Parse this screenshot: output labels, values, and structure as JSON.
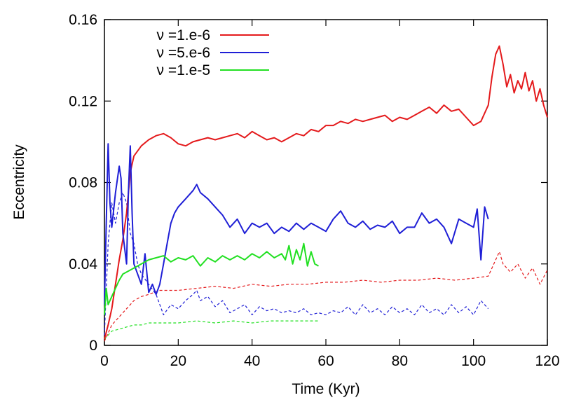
{
  "chart_data": {
    "type": "line",
    "xlabel": "Time (Kyr)",
    "ylabel": "Eccentricity",
    "xlim": [
      0,
      120
    ],
    "ylim": [
      0,
      0.16
    ],
    "xticks": [
      0,
      20,
      40,
      60,
      80,
      100,
      120
    ],
    "yticks": [
      0,
      0.04,
      0.08,
      0.12,
      0.16
    ],
    "xtick_labels": [
      "0",
      "20",
      "40",
      "60",
      "80",
      "100",
      "120"
    ],
    "ytick_labels": [
      "0",
      "0.04",
      "0.08",
      "0.12",
      "0.16"
    ],
    "legend_position": "top-left",
    "series": [
      {
        "name": "ν =1.e-6",
        "color": "#e41a1c",
        "style": "solid",
        "x": [
          0,
          1,
          2,
          3,
          4,
          5,
          6,
          7,
          8,
          10,
          12,
          14,
          16,
          18,
          20,
          22,
          24,
          26,
          28,
          30,
          32,
          34,
          36,
          38,
          40,
          42,
          44,
          46,
          48,
          50,
          52,
          54,
          56,
          58,
          60,
          62,
          64,
          66,
          68,
          70,
          72,
          74,
          76,
          78,
          80,
          82,
          84,
          86,
          88,
          90,
          92,
          94,
          96,
          98,
          100,
          102,
          104,
          105,
          106,
          107,
          108,
          109,
          110,
          111,
          112,
          113,
          114,
          115,
          116,
          117,
          118,
          119,
          120
        ],
        "y": [
          0.003,
          0.01,
          0.018,
          0.03,
          0.042,
          0.052,
          0.065,
          0.085,
          0.093,
          0.098,
          0.101,
          0.103,
          0.104,
          0.102,
          0.099,
          0.098,
          0.1,
          0.101,
          0.102,
          0.101,
          0.102,
          0.103,
          0.104,
          0.102,
          0.105,
          0.103,
          0.101,
          0.102,
          0.1,
          0.102,
          0.104,
          0.103,
          0.106,
          0.105,
          0.108,
          0.108,
          0.11,
          0.109,
          0.111,
          0.11,
          0.111,
          0.112,
          0.113,
          0.11,
          0.112,
          0.111,
          0.113,
          0.115,
          0.117,
          0.114,
          0.118,
          0.115,
          0.116,
          0.112,
          0.108,
          0.11,
          0.118,
          0.132,
          0.143,
          0.147,
          0.138,
          0.127,
          0.133,
          0.124,
          0.13,
          0.126,
          0.134,
          0.125,
          0.13,
          0.12,
          0.126,
          0.118,
          0.112
        ]
      },
      {
        "name": "ν =5.e-6",
        "color": "#1f1fd6",
        "style": "solid",
        "x": [
          0,
          0.5,
          1,
          1.5,
          2,
          3,
          4,
          4.5,
          5,
          6,
          6.5,
          7,
          7.5,
          8,
          9,
          10,
          11,
          12,
          13,
          14,
          15,
          16,
          17,
          18,
          19,
          20,
          22,
          24,
          25,
          26,
          28,
          30,
          32,
          34,
          36,
          38,
          40,
          42,
          44,
          46,
          48,
          50,
          52,
          54,
          56,
          58,
          60,
          62,
          64,
          66,
          68,
          70,
          72,
          74,
          76,
          78,
          80,
          82,
          84,
          86,
          88,
          90,
          92,
          94,
          96,
          98,
          100,
          101,
          102,
          103,
          104
        ],
        "y": [
          0.02,
          0.06,
          0.099,
          0.07,
          0.058,
          0.075,
          0.088,
          0.082,
          0.055,
          0.04,
          0.075,
          0.098,
          0.065,
          0.04,
          0.035,
          0.03,
          0.045,
          0.026,
          0.03,
          0.025,
          0.03,
          0.04,
          0.05,
          0.06,
          0.065,
          0.068,
          0.072,
          0.076,
          0.079,
          0.075,
          0.072,
          0.068,
          0.064,
          0.058,
          0.062,
          0.055,
          0.06,
          0.058,
          0.06,
          0.055,
          0.058,
          0.056,
          0.06,
          0.057,
          0.06,
          0.058,
          0.056,
          0.062,
          0.066,
          0.06,
          0.058,
          0.061,
          0.057,
          0.059,
          0.058,
          0.061,
          0.055,
          0.058,
          0.058,
          0.065,
          0.06,
          0.062,
          0.058,
          0.05,
          0.062,
          0.06,
          0.058,
          0.067,
          0.042,
          0.068,
          0.062
        ]
      },
      {
        "name": "ν =1.e-5",
        "color": "#22e022",
        "style": "solid",
        "x": [
          0,
          0.5,
          1,
          2,
          3,
          4,
          5,
          6,
          7,
          8,
          9,
          10,
          12,
          14,
          16,
          18,
          20,
          22,
          24,
          26,
          28,
          30,
          32,
          34,
          36,
          38,
          40,
          42,
          44,
          46,
          48,
          49,
          50,
          51,
          52,
          53,
          54,
          55,
          56,
          57,
          58
        ],
        "y": [
          0.015,
          0.028,
          0.02,
          0.024,
          0.028,
          0.032,
          0.035,
          0.036,
          0.037,
          0.038,
          0.039,
          0.04,
          0.042,
          0.043,
          0.044,
          0.041,
          0.043,
          0.042,
          0.044,
          0.039,
          0.043,
          0.041,
          0.044,
          0.042,
          0.044,
          0.042,
          0.045,
          0.043,
          0.046,
          0.043,
          0.045,
          0.042,
          0.049,
          0.04,
          0.047,
          0.042,
          0.05,
          0.039,
          0.046,
          0.04,
          0.039
        ]
      },
      {
        "color": "#e41a1c",
        "style": "dashed",
        "x": [
          0,
          1,
          2,
          4,
          6,
          8,
          10,
          12,
          15,
          20,
          25,
          30,
          35,
          40,
          45,
          50,
          55,
          60,
          65,
          70,
          75,
          80,
          85,
          90,
          95,
          100,
          104,
          106,
          107,
          108,
          110,
          112,
          114,
          116,
          118,
          120
        ],
        "y": [
          0.002,
          0.006,
          0.01,
          0.014,
          0.018,
          0.022,
          0.024,
          0.025,
          0.027,
          0.027,
          0.028,
          0.029,
          0.028,
          0.03,
          0.029,
          0.03,
          0.03,
          0.031,
          0.031,
          0.032,
          0.031,
          0.032,
          0.032,
          0.033,
          0.032,
          0.033,
          0.034,
          0.042,
          0.046,
          0.04,
          0.036,
          0.04,
          0.033,
          0.038,
          0.03,
          0.037
        ]
      },
      {
        "color": "#1f1fd6",
        "style": "dashed",
        "x": [
          0,
          1,
          2,
          3,
          4,
          5,
          6,
          7,
          8,
          9,
          10,
          12,
          14,
          16,
          18,
          20,
          22,
          24,
          25,
          26,
          28,
          30,
          32,
          34,
          36,
          38,
          40,
          42,
          44,
          46,
          48,
          50,
          52,
          54,
          56,
          58,
          60,
          62,
          64,
          66,
          68,
          70,
          72,
          74,
          76,
          78,
          80,
          82,
          84,
          86,
          88,
          90,
          92,
          94,
          96,
          98,
          100,
          102,
          104
        ],
        "y": [
          0.005,
          0.05,
          0.07,
          0.06,
          0.07,
          0.075,
          0.07,
          0.055,
          0.05,
          0.04,
          0.035,
          0.03,
          0.025,
          0.015,
          0.02,
          0.018,
          0.022,
          0.025,
          0.027,
          0.022,
          0.024,
          0.019,
          0.022,
          0.016,
          0.018,
          0.02,
          0.015,
          0.019,
          0.017,
          0.018,
          0.016,
          0.017,
          0.016,
          0.018,
          0.015,
          0.016,
          0.015,
          0.017,
          0.016,
          0.019,
          0.015,
          0.02,
          0.016,
          0.018,
          0.015,
          0.019,
          0.016,
          0.018,
          0.015,
          0.02,
          0.016,
          0.018,
          0.015,
          0.02,
          0.016,
          0.019,
          0.015,
          0.022,
          0.018
        ]
      },
      {
        "color": "#22e022",
        "style": "dashed",
        "x": [
          0,
          1,
          2,
          4,
          6,
          8,
          10,
          12,
          15,
          20,
          25,
          30,
          35,
          40,
          45,
          50,
          55,
          58
        ],
        "y": [
          0.003,
          0.005,
          0.007,
          0.008,
          0.009,
          0.01,
          0.01,
          0.011,
          0.011,
          0.011,
          0.012,
          0.011,
          0.012,
          0.011,
          0.012,
          0.012,
          0.012,
          0.012
        ]
      }
    ]
  }
}
